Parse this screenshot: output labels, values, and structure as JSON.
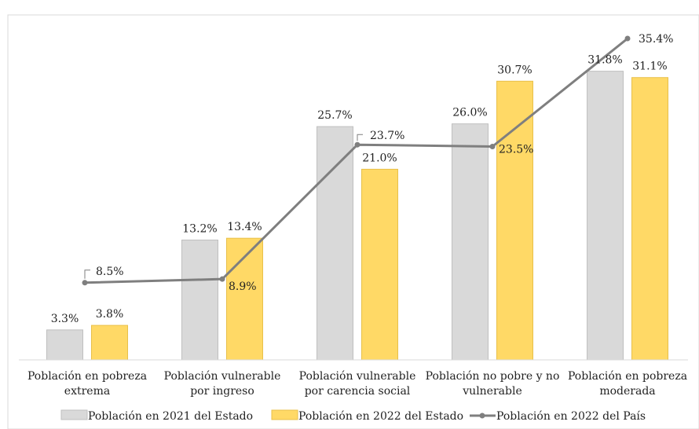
{
  "chart_data": {
    "type": "bar",
    "title": "",
    "title_partial": "",
    "xlabel": "",
    "ylabel": "",
    "ylim": [
      0,
      38
    ],
    "grid": false,
    "legend_position": "bottom",
    "categories": [
      [
        "Población en pobreza",
        "extrema"
      ],
      [
        "Población vulnerable",
        "por ingreso"
      ],
      [
        "Población vulnerable",
        "por carencia social"
      ],
      [
        "Población no pobre y no",
        "vulnerable"
      ],
      [
        "Población en pobreza",
        "moderada"
      ]
    ],
    "series": [
      {
        "name": "Población en 2021 del Estado",
        "kind": "bar",
        "color": "#D9D9D9",
        "values": [
          3.3,
          13.2,
          25.7,
          26.0,
          31.8
        ],
        "labels": [
          "3.3%",
          "13.2%",
          "25.7%",
          "26.0%",
          "31.8%"
        ]
      },
      {
        "name": "Población en 2022 del Estado",
        "kind": "bar",
        "color": "#FFD966",
        "values": [
          3.8,
          13.4,
          21.0,
          30.7,
          31.1
        ],
        "labels": [
          "3.8%",
          "13.4%",
          "21.0%",
          "30.7%",
          "31.1%"
        ]
      },
      {
        "name": "Población en 2022 del País",
        "kind": "line",
        "color": "#7F7F7F",
        "values": [
          8.5,
          8.9,
          23.7,
          23.5,
          35.4
        ],
        "labels": [
          "8.5%",
          "8.9%",
          "23.7%",
          "23.5%",
          "35.4%"
        ]
      }
    ]
  }
}
